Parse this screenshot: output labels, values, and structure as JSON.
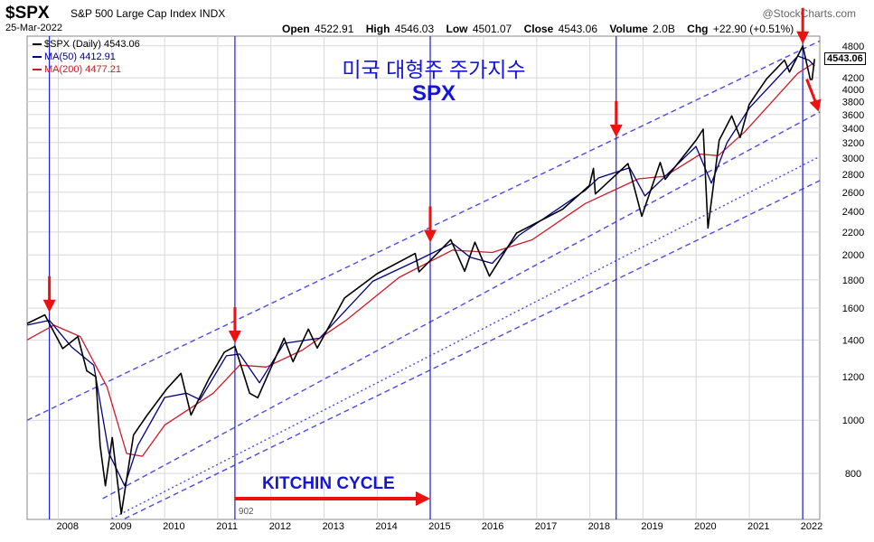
{
  "header": {
    "symbol": "$SPX",
    "index_name": "S&P 500 Large Cap Index",
    "exchange": "INDX",
    "date": "25-Mar-2022",
    "brand": "@StockCharts.com",
    "open_label": "Open",
    "open": "4522.91",
    "high_label": "High",
    "high": "4546.03",
    "low_label": "Low",
    "low": "4501.07",
    "close_label": "Close",
    "close": "4543.06",
    "volume_label": "Volume",
    "volume": "2.0B",
    "chg_label": "Chg",
    "chg": "+22.90 (+0.51%)"
  },
  "legend": {
    "price": "$SPX (Daily) 4543.06",
    "ma50": "MA(50) 4412.91",
    "ma200": "MA(200) 4477.21"
  },
  "annotations": {
    "title_korean": "미국 대형주 주가지수",
    "title_spx": "SPX",
    "kitchin": "KITCHIN CYCLE",
    "kitchin_start_value": "902",
    "last_price_tag": "4543.06"
  },
  "colors": {
    "price": "#000000",
    "ma50": "#000080",
    "ma200": "#cc1a2a",
    "channel": "#4b4be8",
    "cycle_line": "#1e1ed8",
    "arrow": "#ee1111",
    "annotation_text": "#1515d8"
  },
  "chart_data": {
    "type": "line",
    "y_scale": "log",
    "ylim": [
      660,
      5000
    ],
    "xlim": [
      "2007-06-01",
      "2022-04-30"
    ],
    "y_ticks": [
      800,
      1000,
      1200,
      1400,
      1600,
      1800,
      2000,
      2200,
      2400,
      2600,
      2800,
      3000,
      3200,
      3400,
      3600,
      3800,
      4000,
      4200,
      4800
    ],
    "x_ticks": [
      "2008",
      "2009",
      "2010",
      "2011",
      "2012",
      "2013",
      "2014",
      "2015",
      "2016",
      "2017",
      "2018",
      "2019",
      "2020",
      "2021",
      "2022"
    ],
    "grid": true,
    "series": [
      {
        "name": "$SPX (Daily)",
        "points": [
          [
            "2007-06-01",
            1500
          ],
          [
            "2007-10-01",
            1555
          ],
          [
            "2008-02-01",
            1350
          ],
          [
            "2008-05-15",
            1420
          ],
          [
            "2008-07-15",
            1230
          ],
          [
            "2008-09-15",
            1200
          ],
          [
            "2008-10-15",
            900
          ],
          [
            "2008-11-20",
            760
          ],
          [
            "2009-01-06",
            930
          ],
          [
            "2009-03-09",
            676
          ],
          [
            "2009-06-01",
            940
          ],
          [
            "2009-09-01",
            1020
          ],
          [
            "2010-01-15",
            1140
          ],
          [
            "2010-04-23",
            1217
          ],
          [
            "2010-07-01",
            1022
          ],
          [
            "2010-11-01",
            1190
          ],
          [
            "2011-02-15",
            1330
          ],
          [
            "2011-04-29",
            1363
          ],
          [
            "2011-08-08",
            1120
          ],
          [
            "2011-10-03",
            1099
          ],
          [
            "2012-04-01",
            1410
          ],
          [
            "2012-06-01",
            1278
          ],
          [
            "2012-09-15",
            1465
          ],
          [
            "2012-11-15",
            1353
          ],
          [
            "2013-05-21",
            1669
          ],
          [
            "2013-12-31",
            1848
          ],
          [
            "2014-09-19",
            2011
          ],
          [
            "2014-10-15",
            1862
          ],
          [
            "2015-05-21",
            2131
          ],
          [
            "2015-08-25",
            1867
          ],
          [
            "2015-11-03",
            2109
          ],
          [
            "2016-02-11",
            1829
          ],
          [
            "2016-08-15",
            2190
          ],
          [
            "2017-06-30",
            2423
          ],
          [
            "2017-12-29",
            2674
          ],
          [
            "2018-01-26",
            2873
          ],
          [
            "2018-02-08",
            2581
          ],
          [
            "2018-09-20",
            2931
          ],
          [
            "2018-12-24",
            2351
          ],
          [
            "2019-04-30",
            2946
          ],
          [
            "2019-06-03",
            2744
          ],
          [
            "2019-12-31",
            3231
          ],
          [
            "2020-02-19",
            3386
          ],
          [
            "2020-03-23",
            2237
          ],
          [
            "2020-06-08",
            3232
          ],
          [
            "2020-09-02",
            3580
          ],
          [
            "2020-10-30",
            3270
          ],
          [
            "2020-12-31",
            3756
          ],
          [
            "2021-04-30",
            4181
          ],
          [
            "2021-08-31",
            4523
          ],
          [
            "2021-10-04",
            4300
          ],
          [
            "2022-01-03",
            4796
          ],
          [
            "2022-02-24",
            4170
          ],
          [
            "2022-03-08",
            4170
          ],
          [
            "2022-03-25",
            4543
          ]
        ]
      },
      {
        "name": "MA(50)",
        "points": [
          [
            "2007-06-01",
            1490
          ],
          [
            "2007-11-01",
            1520
          ],
          [
            "2008-04-01",
            1360
          ],
          [
            "2008-09-01",
            1260
          ],
          [
            "2008-12-15",
            870
          ],
          [
            "2009-04-01",
            760
          ],
          [
            "2009-07-01",
            900
          ],
          [
            "2010-01-01",
            1100
          ],
          [
            "2010-06-01",
            1120
          ],
          [
            "2010-09-01",
            1090
          ],
          [
            "2011-03-01",
            1310
          ],
          [
            "2011-06-01",
            1320
          ],
          [
            "2011-10-15",
            1170
          ],
          [
            "2012-04-01",
            1380
          ],
          [
            "2012-12-01",
            1410
          ],
          [
            "2013-12-01",
            1790
          ],
          [
            "2014-10-15",
            1960
          ],
          [
            "2015-06-01",
            2100
          ],
          [
            "2015-10-01",
            1980
          ],
          [
            "2016-03-01",
            1930
          ],
          [
            "2016-09-01",
            2170
          ],
          [
            "2017-12-01",
            2620
          ],
          [
            "2018-03-01",
            2760
          ],
          [
            "2018-10-01",
            2880
          ],
          [
            "2019-01-15",
            2560
          ],
          [
            "2019-12-31",
            3150
          ],
          [
            "2020-04-15",
            2700
          ],
          [
            "2020-08-01",
            3200
          ],
          [
            "2021-01-01",
            3700
          ],
          [
            "2021-12-01",
            4600
          ],
          [
            "2022-02-15",
            4520
          ],
          [
            "2022-03-25",
            4413
          ]
        ]
      },
      {
        "name": "MA(200)",
        "points": [
          [
            "2007-06-01",
            1400
          ],
          [
            "2007-12-01",
            1490
          ],
          [
            "2008-06-01",
            1420
          ],
          [
            "2008-12-01",
            1150
          ],
          [
            "2009-04-15",
            870
          ],
          [
            "2009-08-01",
            860
          ],
          [
            "2010-01-01",
            980
          ],
          [
            "2010-12-01",
            1120
          ],
          [
            "2011-06-01",
            1260
          ],
          [
            "2011-12-01",
            1250
          ],
          [
            "2012-08-01",
            1340
          ],
          [
            "2013-06-01",
            1520
          ],
          [
            "2014-06-01",
            1820
          ],
          [
            "2015-06-01",
            2040
          ],
          [
            "2016-03-01",
            2020
          ],
          [
            "2016-12-01",
            2130
          ],
          [
            "2017-12-01",
            2480
          ],
          [
            "2018-12-01",
            2750
          ],
          [
            "2019-06-01",
            2780
          ],
          [
            "2020-02-01",
            3050
          ],
          [
            "2020-06-01",
            3030
          ],
          [
            "2020-12-01",
            3350
          ],
          [
            "2021-12-01",
            4280
          ],
          [
            "2022-03-25",
            4477
          ]
        ]
      }
    ],
    "channels": [
      {
        "style": "dashed",
        "points": [
          [
            "2007-06-01",
            1000
          ],
          [
            "2022-04-30",
            4900
          ]
        ]
      },
      {
        "style": "dashed",
        "points": [
          [
            "2008-11-01",
            720
          ],
          [
            "2022-04-30",
            3640
          ]
        ]
      },
      {
        "style": "dotted",
        "points": [
          [
            "2009-01-01",
            662
          ],
          [
            "2022-04-30",
            3020
          ]
        ]
      },
      {
        "style": "dashed",
        "points": [
          [
            "2009-04-01",
            662
          ],
          [
            "2022-04-30",
            2730
          ]
        ]
      }
    ],
    "cycle_lines": [
      "2007-11-01",
      "2011-04-29",
      "2014-12-31",
      "2018-07-01",
      "2022-01-03"
    ],
    "arrows": [
      {
        "date": "2007-11-01",
        "value": 1560
      },
      {
        "date": "2011-04-29",
        "value": 1370
      },
      {
        "date": "2014-12-31",
        "value": 2090
      },
      {
        "date": "2018-07-01",
        "value": 3250
      },
      {
        "date": "2022-01-03",
        "value": 4800
      },
      {
        "date": "2022-04-15",
        "value": 3700
      }
    ]
  }
}
